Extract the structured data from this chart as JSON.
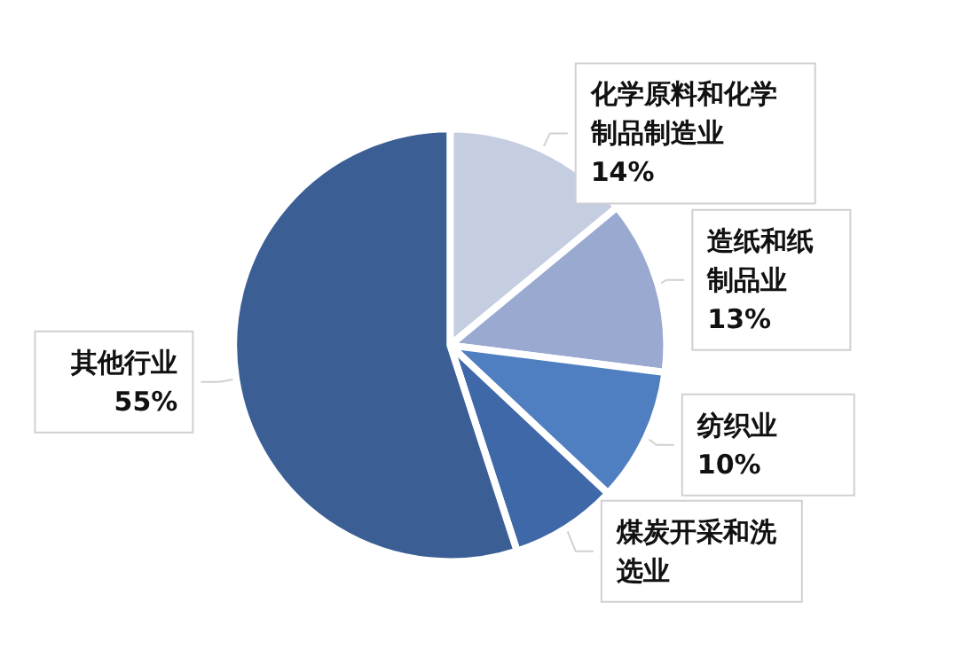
{
  "chart_data": {
    "type": "pie",
    "categories": [
      "化学原料和化学制品制造业",
      "造纸和纸制品业",
      "纺织业",
      "煤炭开采和洗选业",
      "其他行业"
    ],
    "values": [
      14,
      13,
      10,
      8,
      55
    ],
    "value_labels": [
      "14%",
      "13%",
      "10%",
      null,
      "55%"
    ],
    "colors": [
      "#c5cde0",
      "#9aa9cf",
      "#4f7fc0",
      "#3f68a8",
      "#3b5f95"
    ]
  }
}
